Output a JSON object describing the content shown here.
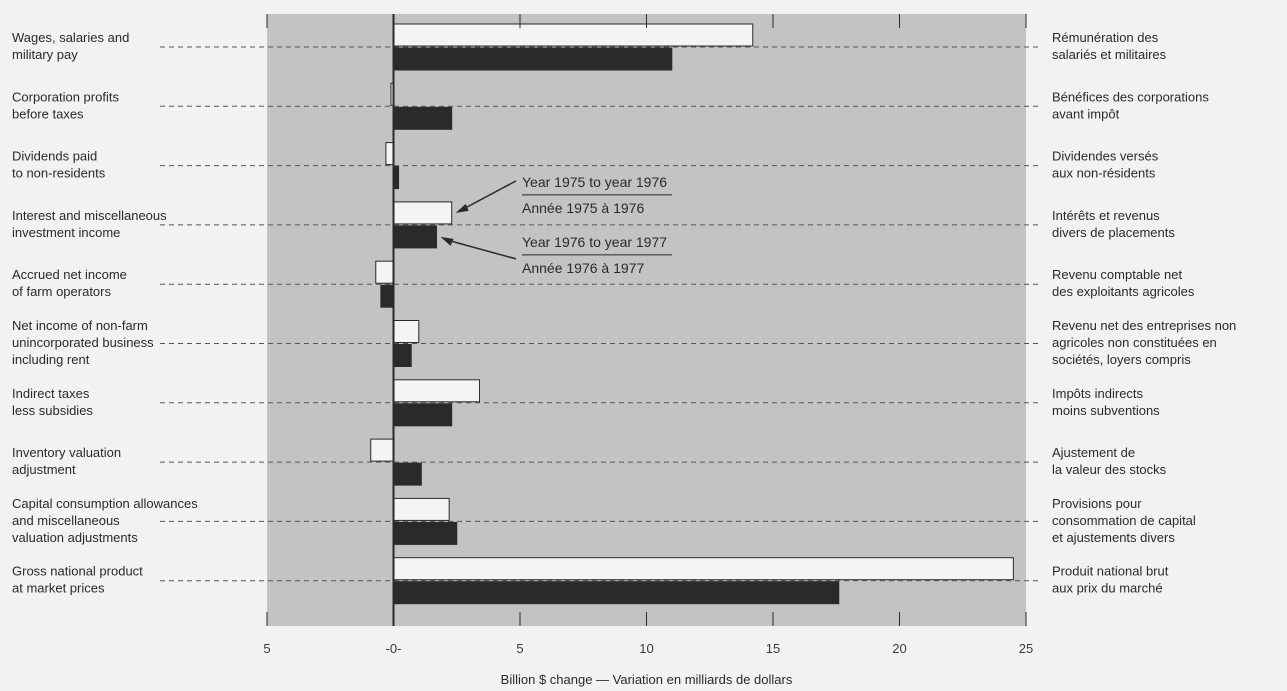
{
  "chart_data": {
    "type": "bar",
    "orientation": "horizontal",
    "title": "",
    "xlabel": "Billion $ change — Variation en milliards de dollars",
    "xlim": [
      -5,
      25
    ],
    "x_ticks": [
      {
        "value": -5,
        "label": "5"
      },
      {
        "value": 0,
        "label": "-0-"
      },
      {
        "value": 5,
        "label": "5"
      },
      {
        "value": 10,
        "label": "10"
      },
      {
        "value": 15,
        "label": "15"
      },
      {
        "value": 20,
        "label": "20"
      },
      {
        "value": 25,
        "label": "25"
      }
    ],
    "categories": [
      {
        "en": [
          "Wages, salaries and",
          "military pay"
        ],
        "fr": [
          "Rémunération des",
          "salariés et militaires"
        ]
      },
      {
        "en": [
          "Corporation profits",
          "before taxes"
        ],
        "fr": [
          "Bénéfices des corporations",
          "avant impôt"
        ]
      },
      {
        "en": [
          "Dividends paid",
          "to non-residents"
        ],
        "fr": [
          "Dividendes versés",
          "aux non-résidents"
        ]
      },
      {
        "en": [
          "Interest and miscellaneous",
          "investment income"
        ],
        "fr": [
          "Intérêts et revenus",
          "divers de placements"
        ]
      },
      {
        "en": [
          "Accrued net income",
          "of farm operators"
        ],
        "fr": [
          "Revenu comptable net",
          "des exploitants agricoles"
        ]
      },
      {
        "en": [
          "Net income of non-farm",
          "unincorporated business",
          "including rent"
        ],
        "fr": [
          "Revenu net des entreprises non",
          "agricoles non constituées en",
          "sociétés, loyers compris"
        ]
      },
      {
        "en": [
          "Indirect taxes",
          "less subsidies"
        ],
        "fr": [
          "Impôts indirects",
          "moins subventions"
        ]
      },
      {
        "en": [
          "Inventory valuation",
          "adjustment"
        ],
        "fr": [
          "Ajustement de",
          "la valeur des stocks"
        ]
      },
      {
        "en": [
          "Capital consumption allowances",
          "and miscellaneous",
          "valuation adjustments"
        ],
        "fr": [
          "Provisions pour",
          "consommation de capital",
          "et ajustements divers"
        ]
      },
      {
        "en": [
          "Gross national product",
          "at market prices"
        ],
        "fr": [
          "Produit national brut",
          "aux prix du marché"
        ]
      }
    ],
    "series": [
      {
        "name": "Year 1975 to year 1976",
        "name_fr": "Année 1975 à 1976",
        "color": "#f4f4f4",
        "values": [
          14.2,
          -0.1,
          -0.3,
          2.3,
          -0.7,
          1.0,
          3.4,
          -0.9,
          2.2,
          24.5
        ]
      },
      {
        "name": "Year 1976 to year 1977",
        "name_fr": "Année 1976 à 1977",
        "color": "#2a2a2a",
        "values": [
          11.0,
          2.3,
          0.2,
          1.7,
          -0.5,
          0.7,
          2.3,
          1.1,
          2.5,
          17.6
        ]
      }
    ],
    "grid": false,
    "legend": "annotations with arrows near the fourth category"
  }
}
